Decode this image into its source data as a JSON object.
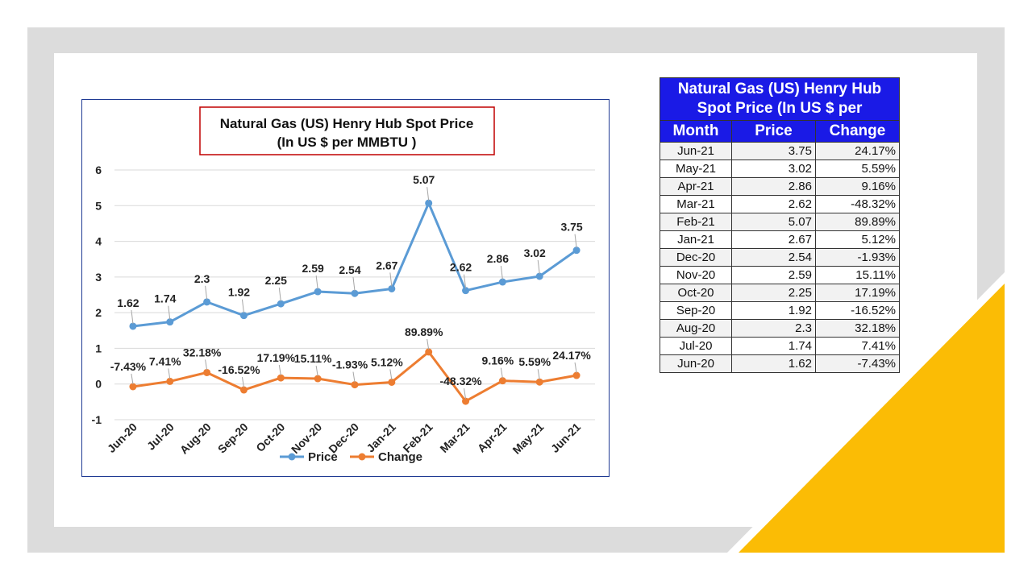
{
  "chart_data": {
    "type": "line",
    "title_line1": "Natural Gas (US) Henry Hub Spot Price",
    "title_line2": "(In US $ per MMBTU  )",
    "categories": [
      "Jun-20",
      "Jul-20",
      "Aug-20",
      "Sep-20",
      "Oct-20",
      "Nov-20",
      "Dec-20",
      "Jan-21",
      "Feb-21",
      "Mar-21",
      "Apr-21",
      "May-21",
      "Jun-21"
    ],
    "series": [
      {
        "name": "Price",
        "color": "#5b9bd5",
        "values": [
          1.62,
          1.74,
          2.3,
          1.92,
          2.25,
          2.59,
          2.54,
          2.67,
          5.07,
          2.62,
          2.86,
          3.02,
          3.75
        ],
        "labels": [
          "1.62",
          "1.74",
          "2.3",
          "1.92",
          "2.25",
          "2.59",
          "2.54",
          "2.67",
          "5.07",
          "2.62",
          "2.86",
          "3.02",
          "3.75"
        ]
      },
      {
        "name": "Change",
        "color": "#ed7d31",
        "values": [
          -0.0743,
          0.0741,
          0.3218,
          -0.1652,
          0.1719,
          0.1511,
          -0.0193,
          0.0512,
          0.8989,
          -0.4832,
          0.0916,
          0.0559,
          0.2417
        ],
        "labels": [
          "-7.43%",
          "7.41%",
          "32.18%",
          "-16.52%",
          "17.19%",
          "15.11%",
          "-1.93%",
          "5.12%",
          "89.89%",
          "-48.32%",
          "9.16%",
          "5.59%",
          "24.17%"
        ]
      }
    ],
    "ylim": [
      -1,
      6
    ],
    "yticks": [
      "-1",
      "0",
      "1",
      "2",
      "3",
      "4",
      "5",
      "6"
    ],
    "grid": true,
    "legend_position": "bottom"
  },
  "table": {
    "title": "Natural Gas (US) Henry Hub Spot Price (In US $ per",
    "headers": [
      "Month",
      "Price",
      "Change"
    ],
    "rows": [
      [
        "Jun-21",
        "3.75",
        "24.17%"
      ],
      [
        "May-21",
        "3.02",
        "5.59%"
      ],
      [
        "Apr-21",
        "2.86",
        "9.16%"
      ],
      [
        "Mar-21",
        "2.62",
        "-48.32%"
      ],
      [
        "Feb-21",
        "5.07",
        "89.89%"
      ],
      [
        "Jan-21",
        "2.67",
        "5.12%"
      ],
      [
        "Dec-20",
        "2.54",
        "-1.93%"
      ],
      [
        "Nov-20",
        "2.59",
        "15.11%"
      ],
      [
        "Oct-20",
        "2.25",
        "17.19%"
      ],
      [
        "Sep-20",
        "1.92",
        "-16.52%"
      ],
      [
        "Aug-20",
        "2.3",
        "32.18%"
      ],
      [
        "Jul-20",
        "1.74",
        "7.41%"
      ],
      [
        "Jun-20",
        "1.62",
        "-7.43%"
      ]
    ]
  },
  "colors": {
    "accent_yellow": "#fbbc05",
    "frame_grey": "#dcdcdc",
    "table_header": "#1a1ae6",
    "chart_border": "#1f3a93",
    "title_border": "#c00000"
  }
}
